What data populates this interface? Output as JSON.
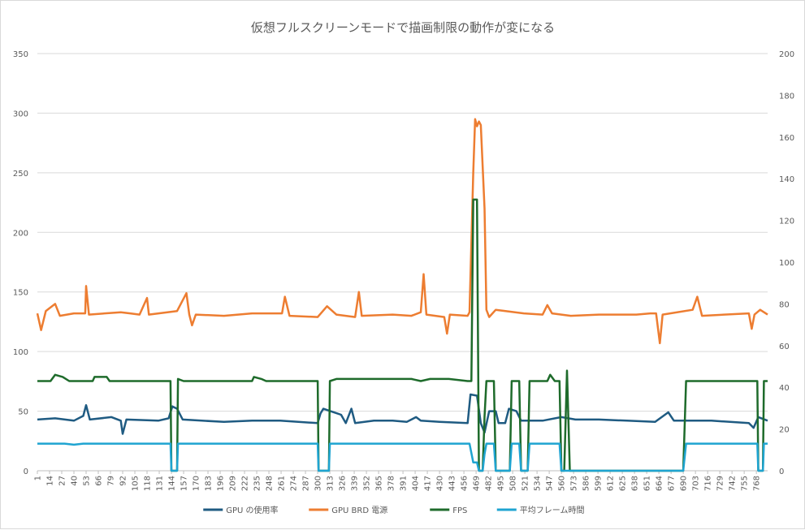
{
  "chart_data": {
    "type": "line",
    "title": "仮想フルスクリーンモードで描画制限の動作が変になる",
    "xlabel": "",
    "ylabel": "",
    "x_tick_labels": [
      "1",
      "14",
      "27",
      "40",
      "53",
      "66",
      "79",
      "92",
      "105",
      "118",
      "131",
      "144",
      "157",
      "170",
      "183",
      "196",
      "209",
      "222",
      "235",
      "248",
      "261",
      "274",
      "287",
      "300",
      "313",
      "326",
      "339",
      "352",
      "365",
      "378",
      "391",
      "404",
      "417",
      "430",
      "443",
      "456",
      "469",
      "482",
      "495",
      "508",
      "521",
      "534",
      "547",
      "560",
      "573",
      "586",
      "599",
      "612",
      "625",
      "638",
      "651",
      "664",
      "677",
      "690",
      "703",
      "716",
      "729",
      "742",
      "755",
      "768"
    ],
    "x_range": [
      1,
      780
    ],
    "y_left": {
      "range": [
        0,
        350
      ],
      "ticks": [
        0,
        50,
        100,
        150,
        200,
        250,
        300,
        350
      ]
    },
    "y_right": {
      "range": [
        0,
        200
      ],
      "ticks": [
        0,
        20,
        40,
        60,
        80,
        100,
        120,
        140,
        160,
        180,
        200
      ]
    },
    "grid": true,
    "legend_position": "bottom",
    "series": [
      {
        "name": "GPU の使用率",
        "axis": "left",
        "color": "#1f5b82",
        "points": [
          [
            1,
            43
          ],
          [
            20,
            44
          ],
          [
            40,
            42
          ],
          [
            50,
            46
          ],
          [
            53,
            55
          ],
          [
            57,
            43
          ],
          [
            80,
            45
          ],
          [
            90,
            42
          ],
          [
            92,
            31
          ],
          [
            96,
            43
          ],
          [
            130,
            42
          ],
          [
            141,
            44
          ],
          [
            145,
            54
          ],
          [
            150,
            52
          ],
          [
            156,
            43
          ],
          [
            200,
            41
          ],
          [
            230,
            42
          ],
          [
            260,
            42
          ],
          [
            300,
            40
          ],
          [
            303,
            48
          ],
          [
            306,
            52
          ],
          [
            325,
            47
          ],
          [
            330,
            40
          ],
          [
            336,
            52
          ],
          [
            340,
            40
          ],
          [
            360,
            42
          ],
          [
            380,
            42
          ],
          [
            395,
            41
          ],
          [
            405,
            45
          ],
          [
            410,
            42
          ],
          [
            430,
            41
          ],
          [
            460,
            40
          ],
          [
            463,
            64
          ],
          [
            470,
            63
          ],
          [
            474,
            40
          ],
          [
            478,
            32
          ],
          [
            483,
            50
          ],
          [
            490,
            50
          ],
          [
            493,
            40
          ],
          [
            500,
            40
          ],
          [
            504,
            52
          ],
          [
            512,
            50
          ],
          [
            517,
            42
          ],
          [
            540,
            42
          ],
          [
            560,
            45
          ],
          [
            575,
            43
          ],
          [
            600,
            43
          ],
          [
            630,
            42
          ],
          [
            660,
            41
          ],
          [
            674,
            49
          ],
          [
            680,
            42
          ],
          [
            720,
            42
          ],
          [
            760,
            40
          ],
          [
            765,
            36
          ],
          [
            770,
            45
          ],
          [
            780,
            42
          ]
        ]
      },
      {
        "name": "GPU BRD 電源",
        "axis": "left",
        "color": "#ed7d31",
        "points": [
          [
            1,
            132
          ],
          [
            5,
            118
          ],
          [
            10,
            134
          ],
          [
            20,
            140
          ],
          [
            25,
            130
          ],
          [
            40,
            132
          ],
          [
            52,
            132
          ],
          [
            53,
            155
          ],
          [
            56,
            131
          ],
          [
            90,
            133
          ],
          [
            100,
            132
          ],
          [
            110,
            131
          ],
          [
            118,
            145
          ],
          [
            120,
            131
          ],
          [
            150,
            134
          ],
          [
            160,
            149
          ],
          [
            163,
            131
          ],
          [
            166,
            122
          ],
          [
            170,
            131
          ],
          [
            200,
            130
          ],
          [
            230,
            132
          ],
          [
            262,
            132
          ],
          [
            265,
            146
          ],
          [
            270,
            130
          ],
          [
            300,
            129
          ],
          [
            310,
            138
          ],
          [
            320,
            131
          ],
          [
            340,
            129
          ],
          [
            344,
            150
          ],
          [
            347,
            130
          ],
          [
            380,
            131
          ],
          [
            400,
            130
          ],
          [
            410,
            133
          ],
          [
            413,
            165
          ],
          [
            416,
            131
          ],
          [
            435,
            129
          ],
          [
            438,
            115
          ],
          [
            441,
            131
          ],
          [
            460,
            130
          ],
          [
            462,
            133
          ],
          [
            466,
            250
          ],
          [
            468,
            295
          ],
          [
            470,
            289
          ],
          [
            472,
            293
          ],
          [
            474,
            290
          ],
          [
            478,
            220
          ],
          [
            480,
            135
          ],
          [
            483,
            129
          ],
          [
            490,
            135
          ],
          [
            520,
            132
          ],
          [
            540,
            131
          ],
          [
            545,
            139
          ],
          [
            550,
            132
          ],
          [
            570,
            130
          ],
          [
            600,
            131
          ],
          [
            640,
            131
          ],
          [
            655,
            132
          ],
          [
            661,
            132
          ],
          [
            665,
            107
          ],
          [
            668,
            131
          ],
          [
            700,
            135
          ],
          [
            705,
            146
          ],
          [
            710,
            130
          ],
          [
            760,
            132
          ],
          [
            763,
            119
          ],
          [
            766,
            131
          ],
          [
            772,
            135
          ],
          [
            780,
            131
          ]
        ]
      },
      {
        "name": "FPS",
        "axis": "right",
        "color": "#1e6b2b",
        "points": [
          [
            1,
            43
          ],
          [
            15,
            43
          ],
          [
            20,
            46
          ],
          [
            28,
            45
          ],
          [
            35,
            43
          ],
          [
            60,
            43
          ],
          [
            62,
            45
          ],
          [
            75,
            45
          ],
          [
            78,
            43
          ],
          [
            140,
            43
          ],
          [
            143,
            43
          ],
          [
            144,
            0
          ],
          [
            150,
            0
          ],
          [
            151,
            44
          ],
          [
            157,
            43
          ],
          [
            230,
            43
          ],
          [
            232,
            45
          ],
          [
            240,
            44
          ],
          [
            245,
            43
          ],
          [
            300,
            43
          ],
          [
            301,
            0
          ],
          [
            312,
            0
          ],
          [
            313,
            43
          ],
          [
            320,
            44
          ],
          [
            360,
            44
          ],
          [
            400,
            44
          ],
          [
            410,
            43
          ],
          [
            420,
            44
          ],
          [
            440,
            44
          ],
          [
            460,
            43
          ],
          [
            464,
            43
          ],
          [
            466,
            130
          ],
          [
            470,
            130
          ],
          [
            472,
            0
          ],
          [
            476,
            0
          ],
          [
            478,
            26
          ],
          [
            480,
            43
          ],
          [
            484,
            43
          ],
          [
            488,
            43
          ],
          [
            490,
            0
          ],
          [
            505,
            0
          ],
          [
            507,
            43
          ],
          [
            515,
            43
          ],
          [
            517,
            0
          ],
          [
            524,
            0
          ],
          [
            526,
            43
          ],
          [
            545,
            43
          ],
          [
            548,
            46
          ],
          [
            553,
            43
          ],
          [
            558,
            43
          ],
          [
            560,
            0
          ],
          [
            563,
            0
          ],
          [
            566,
            48
          ],
          [
            569,
            0
          ],
          [
            690,
            0
          ],
          [
            693,
            43
          ],
          [
            697,
            43
          ],
          [
            720,
            43
          ],
          [
            760,
            43
          ],
          [
            769,
            43
          ],
          [
            770,
            0
          ],
          [
            775,
            0
          ],
          [
            776,
            43
          ],
          [
            780,
            43
          ]
        ]
      },
      {
        "name": "平均フレーム時間",
        "axis": "right",
        "color": "#1fa4d1",
        "points": [
          [
            1,
            13
          ],
          [
            30,
            13
          ],
          [
            40,
            12.5
          ],
          [
            50,
            13
          ],
          [
            143,
            13
          ],
          [
            144,
            0
          ],
          [
            150,
            0
          ],
          [
            151,
            13
          ],
          [
            300,
            13
          ],
          [
            301,
            0
          ],
          [
            312,
            0
          ],
          [
            313,
            13
          ],
          [
            460,
            13
          ],
          [
            462,
            13
          ],
          [
            466,
            4
          ],
          [
            470,
            4
          ],
          [
            472,
            0
          ],
          [
            476,
            0
          ],
          [
            478,
            8
          ],
          [
            480,
            13
          ],
          [
            488,
            13
          ],
          [
            490,
            0
          ],
          [
            505,
            0
          ],
          [
            507,
            13
          ],
          [
            515,
            13
          ],
          [
            517,
            0
          ],
          [
            524,
            0
          ],
          [
            526,
            13
          ],
          [
            558,
            13
          ],
          [
            560,
            0
          ],
          [
            690,
            0
          ],
          [
            693,
            13
          ],
          [
            769,
            13
          ],
          [
            770,
            0
          ],
          [
            775,
            0
          ],
          [
            776,
            13
          ],
          [
            780,
            13
          ]
        ]
      }
    ]
  }
}
